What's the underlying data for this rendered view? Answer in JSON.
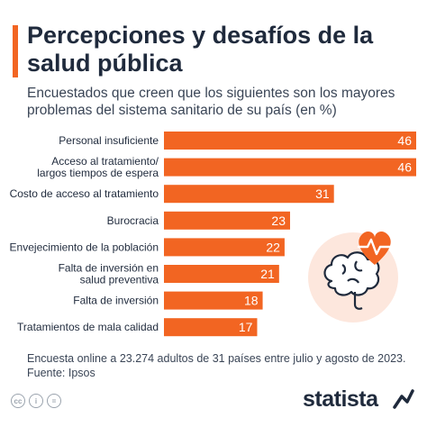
{
  "header": {
    "title": "Percepciones y desafíos de la salud pública",
    "subtitle": "Encuestados que creen que los siguientes son los mayores problemas del sistema sanitario de su país (en %)"
  },
  "chart_data": {
    "type": "bar",
    "orientation": "horizontal",
    "categories": [
      "Personal insuficiente",
      "Acceso al tratamiento/\nlargos tiempos de espera",
      "Costo de acceso al tratamiento",
      "Burocracia",
      "Envejecimiento de la población",
      "Falta de inversión en\nsalud preventiva",
      "Falta de inversión",
      "Tratamientos de mala calidad"
    ],
    "values": [
      46,
      46,
      31,
      23,
      22,
      21,
      18,
      17
    ],
    "xlim": [
      0,
      46
    ],
    "grid": false,
    "legend": "none",
    "bar_color": "#f26522"
  },
  "footer": {
    "note": "Encuesta online a 23.274 adultos de 31 países entre julio y agosto de 2023.",
    "source": "Fuente: Ipsos",
    "brand": "statista",
    "cc_icons": [
      "cc",
      "i",
      "="
    ]
  },
  "illustration": {
    "icons": [
      "heart-icon",
      "brain-icon",
      "heartbeat-icon"
    ],
    "colors": {
      "heart": "#f26522",
      "circle": "#fde7dd",
      "brain": "#1f2a3c"
    }
  }
}
